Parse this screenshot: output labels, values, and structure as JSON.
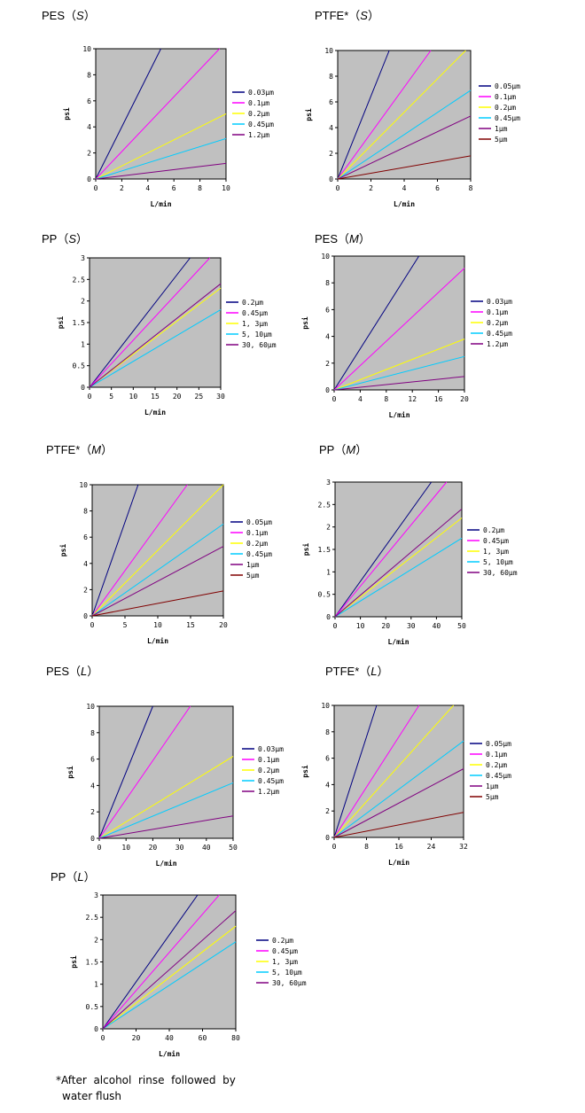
{
  "footnote": {
    "line1": "*After  alcohol  rinse  followed  by",
    "line2": "water flush"
  },
  "chart_data": [
    {
      "id": "pes-s",
      "type": "line",
      "title_main": "PES（",
      "title_tag": "S",
      "title_end": "）",
      "xlabel": "L/min",
      "ylabel": "psi",
      "xlim": [
        0,
        10
      ],
      "ylim": [
        0,
        10
      ],
      "xticks": [
        "0",
        "2",
        "4",
        "6",
        "8",
        "10"
      ],
      "yticks": [
        "0",
        "2",
        "4",
        "6",
        "8",
        "10"
      ],
      "series": [
        {
          "name": "0.03μm",
          "color": "#000080",
          "points": [
            [
              0,
              0
            ],
            [
              5,
              10
            ]
          ]
        },
        {
          "name": "0.1μm",
          "color": "#ff00ff",
          "points": [
            [
              0,
              0
            ],
            [
              9.5,
              10
            ]
          ]
        },
        {
          "name": "0.2μm",
          "color": "#ffff00",
          "points": [
            [
              0,
              0
            ],
            [
              10,
              5
            ]
          ]
        },
        {
          "name": "0.45μm",
          "color": "#00ccff",
          "points": [
            [
              0,
              0
            ],
            [
              10,
              3.1
            ]
          ]
        },
        {
          "name": "1.2μm",
          "color": "#800080",
          "points": [
            [
              0,
              0
            ],
            [
              10,
              1.2
            ]
          ]
        }
      ]
    },
    {
      "id": "ptfe-s",
      "type": "line",
      "title_main": "PTFE*（",
      "title_tag": "S",
      "title_end": "）",
      "xlabel": "L/min",
      "ylabel": "psi",
      "xlim": [
        0,
        8
      ],
      "ylim": [
        0,
        10
      ],
      "xticks": [
        "0",
        "2",
        "4",
        "6",
        "8"
      ],
      "yticks": [
        "0",
        "2",
        "4",
        "6",
        "8",
        "10"
      ],
      "series": [
        {
          "name": "0.05μm",
          "color": "#000080",
          "points": [
            [
              0,
              0
            ],
            [
              3.1,
              10
            ]
          ]
        },
        {
          "name": "0.1μm",
          "color": "#ff00ff",
          "points": [
            [
              0,
              0
            ],
            [
              5.6,
              10
            ]
          ]
        },
        {
          "name": "0.2μm",
          "color": "#ffff00",
          "points": [
            [
              0,
              0
            ],
            [
              7.7,
              10
            ]
          ]
        },
        {
          "name": "0.45μm",
          "color": "#00ccff",
          "points": [
            [
              0,
              0
            ],
            [
              8,
              6.9
            ]
          ]
        },
        {
          "name": "1μm",
          "color": "#800080",
          "points": [
            [
              0,
              0
            ],
            [
              8,
              4.9
            ]
          ]
        },
        {
          "name": "5μm",
          "color": "#800000",
          "points": [
            [
              0,
              0
            ],
            [
              8,
              1.8
            ]
          ]
        }
      ]
    },
    {
      "id": "pp-s",
      "type": "line",
      "title_main": "PP（",
      "title_tag": "S",
      "title_end": "）",
      "xlabel": "L/min",
      "ylabel": "psi",
      "xlim": [
        0,
        30
      ],
      "ylim": [
        0,
        3
      ],
      "xticks": [
        "0",
        "5",
        "10",
        "15",
        "20",
        "25",
        "30"
      ],
      "yticks": [
        "0",
        "0.5",
        "1",
        "1.5",
        "2",
        "2.5",
        "3"
      ],
      "series": [
        {
          "name": "0.2μm",
          "color": "#000080",
          "points": [
            [
              0,
              0
            ],
            [
              23,
              3
            ]
          ]
        },
        {
          "name": "0.45μm",
          "color": "#ff00ff",
          "points": [
            [
              0,
              0
            ],
            [
              27.5,
              3
            ]
          ]
        },
        {
          "name": "1, 3μm",
          "color": "#ffff00",
          "points": [
            [
              0,
              0
            ],
            [
              30,
              2.3
            ]
          ]
        },
        {
          "name": "5, 10μm",
          "color": "#00ccff",
          "points": [
            [
              0,
              0
            ],
            [
              30,
              1.8
            ]
          ]
        },
        {
          "name": "30, 60μm",
          "color": "#800080",
          "points": [
            [
              0,
              0
            ],
            [
              30,
              2.4
            ]
          ]
        }
      ]
    },
    {
      "id": "pes-m",
      "type": "line",
      "title_main": "PES（",
      "title_tag": "M",
      "title_end": "）",
      "xlabel": "L/min",
      "ylabel": "psi",
      "xlim": [
        0,
        20
      ],
      "ylim": [
        0,
        10
      ],
      "xticks": [
        "0",
        "4",
        "8",
        "12",
        "16",
        "20"
      ],
      "yticks": [
        "0",
        "2",
        "4",
        "6",
        "8",
        "10"
      ],
      "series": [
        {
          "name": "0.03μm",
          "color": "#000080",
          "points": [
            [
              0,
              0
            ],
            [
              13,
              10
            ]
          ]
        },
        {
          "name": "0.1μm",
          "color": "#ff00ff",
          "points": [
            [
              0,
              0
            ],
            [
              20,
              9.1
            ]
          ]
        },
        {
          "name": "0.2μm",
          "color": "#ffff00",
          "points": [
            [
              0,
              0
            ],
            [
              20,
              3.8
            ]
          ]
        },
        {
          "name": "0.45μm",
          "color": "#00ccff",
          "points": [
            [
              0,
              0
            ],
            [
              20,
              2.5
            ]
          ]
        },
        {
          "name": "1.2μm",
          "color": "#800080",
          "points": [
            [
              0,
              0
            ],
            [
              20,
              1.0
            ]
          ]
        }
      ]
    },
    {
      "id": "ptfe-m",
      "type": "line",
      "title_main": "PTFE*（",
      "title_tag": "M",
      "title_end": "）",
      "xlabel": "L/min",
      "ylabel": "psi",
      "xlim": [
        0,
        20
      ],
      "ylim": [
        0,
        10
      ],
      "xticks": [
        "0",
        "5",
        "10",
        "15",
        "20"
      ],
      "yticks": [
        "0",
        "2",
        "4",
        "6",
        "8",
        "10"
      ],
      "series": [
        {
          "name": "0.05μm",
          "color": "#000080",
          "points": [
            [
              0,
              0
            ],
            [
              7,
              10
            ]
          ]
        },
        {
          "name": "0.1μm",
          "color": "#ff00ff",
          "points": [
            [
              0,
              0
            ],
            [
              14.5,
              10
            ]
          ]
        },
        {
          "name": "0.2μm",
          "color": "#ffff00",
          "points": [
            [
              0,
              0
            ],
            [
              20,
              10
            ]
          ]
        },
        {
          "name": "0.45μm",
          "color": "#00ccff",
          "points": [
            [
              0,
              0
            ],
            [
              20,
              7
            ]
          ]
        },
        {
          "name": "1μm",
          "color": "#800080",
          "points": [
            [
              0,
              0
            ],
            [
              20,
              5.3
            ]
          ]
        },
        {
          "name": "5μm",
          "color": "#800000",
          "points": [
            [
              0,
              0
            ],
            [
              20,
              1.9
            ]
          ]
        }
      ]
    },
    {
      "id": "pp-m",
      "type": "line",
      "title_main": "PP（",
      "title_tag": "M",
      "title_end": "）",
      "xlabel": "L/min",
      "ylabel": "psi",
      "xlim": [
        0,
        50
      ],
      "ylim": [
        0,
        3
      ],
      "xticks": [
        "0",
        "10",
        "20",
        "30",
        "40",
        "50"
      ],
      "yticks": [
        "0",
        "0.5",
        "1",
        "1.5",
        "2",
        "2.5",
        "3"
      ],
      "series": [
        {
          "name": "0.2μm",
          "color": "#000080",
          "points": [
            [
              0,
              0
            ],
            [
              38,
              3
            ]
          ]
        },
        {
          "name": "0.45μm",
          "color": "#ff00ff",
          "points": [
            [
              0,
              0
            ],
            [
              44,
              3
            ]
          ]
        },
        {
          "name": "1, 3μm",
          "color": "#ffff00",
          "points": [
            [
              0,
              0
            ],
            [
              50,
              2.2
            ]
          ]
        },
        {
          "name": "5, 10μm",
          "color": "#00ccff",
          "points": [
            [
              0,
              0
            ],
            [
              50,
              1.75
            ]
          ]
        },
        {
          "name": "30, 60μm",
          "color": "#800080",
          "points": [
            [
              0,
              0
            ],
            [
              50,
              2.4
            ]
          ]
        }
      ]
    },
    {
      "id": "pes-l",
      "type": "line",
      "title_main": "PES（",
      "title_tag": "L",
      "title_end": "）",
      "xlabel": "L/min",
      "ylabel": "psi",
      "xlim": [
        0,
        50
      ],
      "ylim": [
        0,
        10
      ],
      "xticks": [
        "0",
        "10",
        "20",
        "30",
        "40",
        "50"
      ],
      "yticks": [
        "0",
        "2",
        "4",
        "6",
        "8",
        "10"
      ],
      "series": [
        {
          "name": "0.03μm",
          "color": "#000080",
          "points": [
            [
              0,
              0
            ],
            [
              20,
              10
            ]
          ]
        },
        {
          "name": "0.1μm",
          "color": "#ff00ff",
          "points": [
            [
              0,
              0
            ],
            [
              34,
              10
            ]
          ]
        },
        {
          "name": "0.2μm",
          "color": "#ffff00",
          "points": [
            [
              0,
              0
            ],
            [
              50,
              6.2
            ]
          ]
        },
        {
          "name": "0.45μm",
          "color": "#00ccff",
          "points": [
            [
              0,
              0
            ],
            [
              50,
              4.2
            ]
          ]
        },
        {
          "name": "1.2μm",
          "color": "#800080",
          "points": [
            [
              0,
              0
            ],
            [
              50,
              1.7
            ]
          ]
        }
      ]
    },
    {
      "id": "ptfe-l",
      "type": "line",
      "title_main": "PTFE*（",
      "title_tag": "L",
      "title_end": "）",
      "xlabel": "L/min",
      "ylabel": "psi",
      "xlim": [
        0,
        32
      ],
      "ylim": [
        0,
        10
      ],
      "xticks": [
        "0",
        "8",
        "16",
        "24",
        "32"
      ],
      "yticks": [
        "0",
        "2",
        "4",
        "6",
        "8",
        "10"
      ],
      "series": [
        {
          "name": "0.05μm",
          "color": "#000080",
          "points": [
            [
              0,
              0
            ],
            [
              10.5,
              10
            ]
          ]
        },
        {
          "name": "0.1μm",
          "color": "#ff00ff",
          "points": [
            [
              0,
              0
            ],
            [
              21,
              10
            ]
          ]
        },
        {
          "name": "0.2μm",
          "color": "#ffff00",
          "points": [
            [
              0,
              0
            ],
            [
              29.5,
              10
            ]
          ]
        },
        {
          "name": "0.45μm",
          "color": "#00ccff",
          "points": [
            [
              0,
              0
            ],
            [
              32,
              7.3
            ]
          ]
        },
        {
          "name": "1μm",
          "color": "#800080",
          "points": [
            [
              0,
              0
            ],
            [
              32,
              5.2
            ]
          ]
        },
        {
          "name": "5μm",
          "color": "#800000",
          "points": [
            [
              0,
              0
            ],
            [
              32,
              1.9
            ]
          ]
        }
      ]
    },
    {
      "id": "pp-l",
      "type": "line",
      "title_main": "PP（",
      "title_tag": "L",
      "title_end": "）",
      "xlabel": "L/min",
      "ylabel": "psi",
      "xlim": [
        0,
        80
      ],
      "ylim": [
        0,
        3
      ],
      "xticks": [
        "0",
        "20",
        "40",
        "60",
        "80"
      ],
      "yticks": [
        "0",
        "0.5",
        "1",
        "1.5",
        "2",
        "2.5",
        "3"
      ],
      "series": [
        {
          "name": "0.2μm",
          "color": "#000080",
          "points": [
            [
              0,
              0
            ],
            [
              57,
              3
            ]
          ]
        },
        {
          "name": "0.45μm",
          "color": "#ff00ff",
          "points": [
            [
              0,
              0
            ],
            [
              70,
              3
            ]
          ]
        },
        {
          "name": "1, 3μm",
          "color": "#ffff00",
          "points": [
            [
              0,
              0
            ],
            [
              80,
              2.3
            ]
          ]
        },
        {
          "name": "5, 10μm",
          "color": "#00ccff",
          "points": [
            [
              0,
              0
            ],
            [
              80,
              1.95
            ]
          ]
        },
        {
          "name": "30, 60μm",
          "color": "#800080",
          "points": [
            [
              0,
              0
            ],
            [
              80,
              2.65
            ]
          ]
        }
      ]
    }
  ]
}
